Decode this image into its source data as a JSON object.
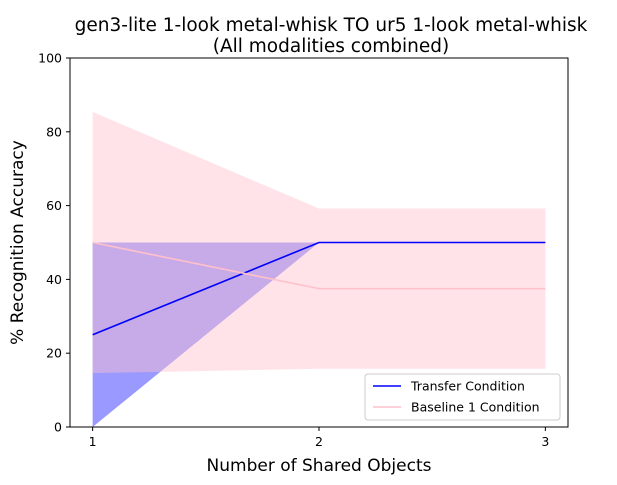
{
  "chart_data": {
    "type": "line",
    "title": "gen3-lite 1-look metal-whisk TO ur5 1-look metal-whisk",
    "subtitle": "(All modalities combined)",
    "xlabel": "Number of Shared Objects",
    "ylabel": "% Recognition Accuracy",
    "x": [
      1,
      2,
      3
    ],
    "x_ticks": [
      "1",
      "2",
      "3"
    ],
    "xlim": [
      0.9,
      3.1
    ],
    "ylim": [
      0,
      100
    ],
    "y_ticks": [
      "0",
      "20",
      "40",
      "60",
      "80",
      "100"
    ],
    "grid": false,
    "legend_position": "bottom-right",
    "series": [
      {
        "name": "Transfer Condition",
        "color": "#0000ff",
        "band_color": "#0000ff",
        "values": [
          25,
          50,
          50
        ],
        "lower": [
          0,
          50,
          50
        ],
        "upper": [
          50,
          50,
          50
        ]
      },
      {
        "name": "Baseline 1 Condition",
        "color": "#ffc0cb",
        "band_color": "#ffc0cb",
        "values": [
          50,
          37.5,
          37.5
        ],
        "lower": [
          14.6,
          15.8,
          15.8
        ],
        "upper": [
          85.4,
          59.2,
          59.2
        ]
      }
    ]
  }
}
